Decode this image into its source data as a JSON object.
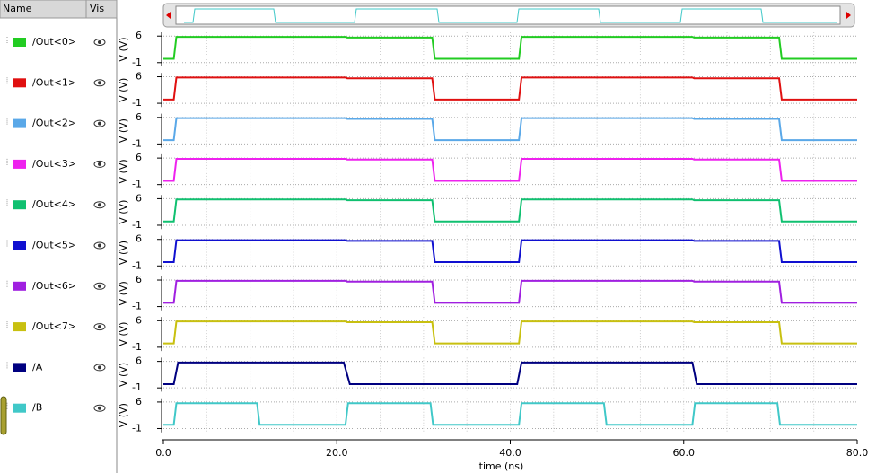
{
  "panel": {
    "name_header": "Name",
    "vis_header": "Vis"
  },
  "chart_data": [
    {
      "type": "line",
      "ylabel": "V (V)",
      "ylim": [
        -2,
        7
      ],
      "yticks": [
        6,
        -1
      ],
      "xlim": [
        0,
        80
      ],
      "grid": true,
      "x": [
        0,
        1.2,
        1.5,
        21,
        21.2,
        31,
        31.3,
        41,
        41.3,
        61,
        61.2,
        71,
        71.3,
        80
      ],
      "series": [
        {
          "name": "/Out<0>",
          "color": "#22cc22",
          "values": [
            0,
            0,
            5.8,
            5.8,
            5.6,
            5.6,
            0,
            0,
            5.8,
            5.8,
            5.6,
            5.6,
            0,
            0
          ]
        }
      ]
    },
    {
      "type": "line",
      "ylabel": "V (V)",
      "ylim": [
        -2,
        7
      ],
      "yticks": [
        6,
        -1
      ],
      "xlim": [
        0,
        80
      ],
      "grid": true,
      "x": [
        0,
        1.2,
        1.5,
        21,
        21.2,
        31,
        31.3,
        41,
        41.3,
        61,
        61.2,
        71,
        71.3,
        80
      ],
      "series": [
        {
          "name": "/Out<1>",
          "color": "#e01010",
          "values": [
            0,
            0,
            5.8,
            5.8,
            5.6,
            5.6,
            0,
            0,
            5.8,
            5.8,
            5.6,
            5.6,
            0,
            0
          ]
        }
      ]
    },
    {
      "type": "line",
      "ylabel": "V (V)",
      "ylim": [
        -2,
        7
      ],
      "yticks": [
        6,
        -1
      ],
      "xlim": [
        0,
        80
      ],
      "grid": true,
      "x": [
        0,
        1.2,
        1.5,
        21,
        21.2,
        31,
        31.3,
        41,
        41.3,
        61,
        61.2,
        71,
        71.3,
        80
      ],
      "series": [
        {
          "name": "/Out<2>",
          "color": "#5aa8e8",
          "values": [
            0,
            0,
            5.8,
            5.8,
            5.6,
            5.6,
            0,
            0,
            5.8,
            5.8,
            5.6,
            5.6,
            0,
            0
          ]
        }
      ]
    },
    {
      "type": "line",
      "ylabel": "V (V)",
      "ylim": [
        -2,
        7
      ],
      "yticks": [
        6,
        -1
      ],
      "xlim": [
        0,
        80
      ],
      "grid": true,
      "x": [
        0,
        1.2,
        1.5,
        21,
        21.2,
        31,
        31.3,
        41,
        41.3,
        61,
        61.2,
        71,
        71.3,
        80
      ],
      "series": [
        {
          "name": "/Out<3>",
          "color": "#ee22ee",
          "values": [
            0,
            0,
            5.8,
            5.8,
            5.6,
            5.6,
            0,
            0,
            5.8,
            5.8,
            5.6,
            5.6,
            0,
            0
          ]
        }
      ]
    },
    {
      "type": "line",
      "ylabel": "V (V)",
      "ylim": [
        -2,
        7
      ],
      "yticks": [
        6,
        -1
      ],
      "xlim": [
        0,
        80
      ],
      "grid": true,
      "x": [
        0,
        1.2,
        1.5,
        21,
        21.2,
        31,
        31.3,
        41,
        41.3,
        61,
        61.2,
        71,
        71.3,
        80
      ],
      "series": [
        {
          "name": "/Out<4>",
          "color": "#10c070",
          "values": [
            0,
            0,
            5.8,
            5.8,
            5.6,
            5.6,
            0,
            0,
            5.8,
            5.8,
            5.6,
            5.6,
            0,
            0
          ]
        }
      ]
    },
    {
      "type": "line",
      "ylabel": "V (V)",
      "ylim": [
        -2,
        7
      ],
      "yticks": [
        6,
        -1
      ],
      "xlim": [
        0,
        80
      ],
      "grid": true,
      "x": [
        0,
        1.2,
        1.5,
        21,
        21.2,
        31,
        31.3,
        41,
        41.3,
        61,
        61.2,
        71,
        71.3,
        80
      ],
      "series": [
        {
          "name": "/Out<5>",
          "color": "#1010d0",
          "values": [
            0,
            0,
            5.8,
            5.8,
            5.6,
            5.6,
            0,
            0,
            5.8,
            5.8,
            5.6,
            5.6,
            0,
            0
          ]
        }
      ]
    },
    {
      "type": "line",
      "ylabel": "V (V)",
      "ylim": [
        -2,
        7
      ],
      "yticks": [
        6,
        -1
      ],
      "xlim": [
        0,
        80
      ],
      "grid": true,
      "x": [
        0,
        1.2,
        1.5,
        21,
        21.2,
        31,
        31.3,
        41,
        41.3,
        61,
        61.2,
        71,
        71.3,
        80
      ],
      "series": [
        {
          "name": "/Out<6>",
          "color": "#a020e0",
          "values": [
            0,
            0,
            5.8,
            5.8,
            5.6,
            5.6,
            0,
            0,
            5.8,
            5.8,
            5.6,
            5.6,
            0,
            0
          ]
        }
      ]
    },
    {
      "type": "line",
      "ylabel": "V (V)",
      "ylim": [
        -2,
        7
      ],
      "yticks": [
        6,
        -1
      ],
      "xlim": [
        0,
        80
      ],
      "grid": true,
      "x": [
        0,
        1.2,
        1.5,
        21,
        21.2,
        31,
        31.3,
        41,
        41.3,
        61,
        61.2,
        71,
        71.3,
        80
      ],
      "series": [
        {
          "name": "/Out<7>",
          "color": "#c8c010",
          "values": [
            0,
            0,
            5.8,
            5.8,
            5.6,
            5.6,
            0,
            0,
            5.8,
            5.8,
            5.6,
            5.6,
            0,
            0
          ]
        }
      ]
    },
    {
      "type": "line",
      "ylabel": "V (V)",
      "ylim": [
        -2,
        7
      ],
      "yticks": [
        6,
        -1
      ],
      "xlim": [
        0,
        80
      ],
      "grid": true,
      "x": [
        0,
        1.2,
        1.7,
        20.8,
        21.5,
        40.8,
        41.3,
        61,
        61.5,
        80
      ],
      "series": [
        {
          "name": "/A",
          "color": "#000080",
          "values": [
            0,
            0,
            5.7,
            5.7,
            0,
            0,
            5.7,
            5.7,
            0,
            0
          ]
        }
      ]
    },
    {
      "type": "line",
      "ylabel": "V (V)",
      "ylim": [
        -2,
        7
      ],
      "yticks": [
        6,
        -1
      ],
      "xlim": [
        0,
        80
      ],
      "grid": true,
      "x": [
        0,
        1.2,
        1.5,
        10.8,
        11.1,
        21,
        21.3,
        30.8,
        31.1,
        41,
        41.3,
        50.8,
        51.1,
        61,
        61.3,
        70.8,
        71.1,
        80
      ],
      "series": [
        {
          "name": "/B",
          "color": "#40c8c8",
          "values": [
            0,
            0,
            5.7,
            5.7,
            0,
            0,
            5.7,
            5.7,
            0,
            0,
            5.7,
            5.7,
            0,
            0,
            5.7,
            5.7,
            0,
            0
          ]
        }
      ],
      "xlabel": "time (ns)",
      "xticks": [
        {
          "value": 0,
          "label": "0.0"
        },
        {
          "value": 20,
          "label": "20.0"
        },
        {
          "value": 40,
          "label": "40.0"
        },
        {
          "value": 60,
          "label": "60.0"
        },
        {
          "value": 80,
          "label": "80.0"
        }
      ]
    }
  ]
}
